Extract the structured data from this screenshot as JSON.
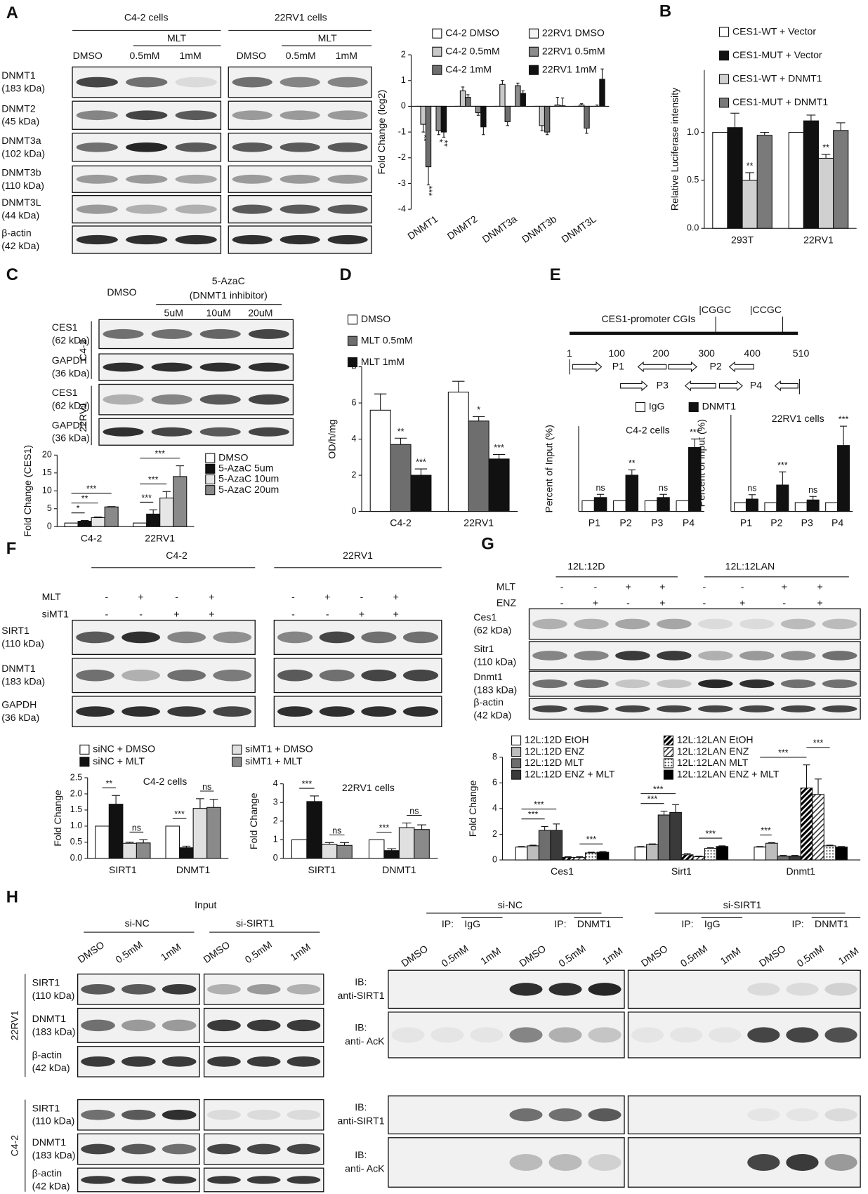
{
  "panel_labels": [
    "A",
    "B",
    "C",
    "D",
    "E",
    "F",
    "G",
    "H"
  ],
  "blot_A": {
    "groups": [
      "C4-2 cells",
      "22RV1 cells"
    ],
    "treatment": "MLT",
    "lanes": [
      "DMSO",
      "0.5mM",
      "1mM"
    ],
    "rows": [
      [
        "DNMT1",
        "(183 kDa)"
      ],
      [
        "DNMT2",
        "(45 kDa)"
      ],
      [
        "DNMT3a",
        "(102 kDa)"
      ],
      [
        "DNMT3b",
        "(110 kDa)"
      ],
      [
        "DNMT3L",
        "(44 kDa)"
      ],
      [
        "β-actin",
        "(42 kDa)"
      ]
    ]
  },
  "blot_C": {
    "lanes": [
      "DMSO",
      "5uM",
      "10uM",
      "20uM"
    ],
    "treatment": [
      "5-AzaC",
      "(DNMT1  inhibitor)"
    ],
    "cells": [
      "C4-2",
      "22RV1"
    ],
    "rows": [
      [
        "CES1",
        "(62 kDa)"
      ],
      [
        "GAPDH",
        "(36 kDa)"
      ]
    ]
  },
  "diagram_E": {
    "title": "CES1-promoter CGIs",
    "sites": [
      "|CGGC",
      "|CCGC"
    ],
    "positions": [
      "1",
      "100",
      "200",
      "300",
      "400",
      "510"
    ],
    "primers": [
      "P1",
      "P2",
      "P3",
      "P4"
    ]
  },
  "blot_F": {
    "groups": [
      "C4-2",
      "22RV1"
    ],
    "conditions": [
      "MLT",
      "siMT1"
    ],
    "signs": [
      [
        "-",
        "+",
        "-",
        "+"
      ],
      [
        "-",
        "-",
        "+",
        "+"
      ]
    ],
    "rows": [
      [
        "SIRT1",
        "(110 kDa)"
      ],
      [
        "DNMT1",
        "(183 kDa)"
      ],
      [
        "GAPDH",
        "(36 kDa)"
      ]
    ]
  },
  "blot_G": {
    "groups": [
      "12L:12D",
      "12L:12LAN"
    ],
    "conditions": [
      "MLT",
      "ENZ"
    ],
    "signs": [
      [
        "-",
        "-",
        "+",
        "+",
        "-",
        "-",
        "+",
        "+"
      ],
      [
        "-",
        "+",
        "-",
        "+",
        "-",
        "+",
        "-",
        "+"
      ]
    ],
    "rows": [
      [
        "Ces1",
        "(62 kDa)"
      ],
      [
        "Sitr1",
        "(110 kDa)"
      ],
      [
        "Dnmt1",
        "(183 kDa)"
      ],
      [
        "β-actin",
        "(42 kDa)"
      ]
    ]
  },
  "blot_H": {
    "input": "Input",
    "groups": [
      "si-NC",
      "si-SIRT1"
    ],
    "lanes": [
      "DMSO",
      "0.5mM",
      "1mM"
    ],
    "cells": [
      "22RV1",
      "C4-2"
    ],
    "rows": [
      [
        "SIRT1",
        "(110 kDa)"
      ],
      [
        "DNMT1",
        "(183 kDa)"
      ],
      [
        "β-actin",
        "(42 kDa)"
      ]
    ],
    "ip": [
      "IP:",
      "IgG",
      "DNMT1"
    ],
    "ib": [
      [
        "IB:",
        "anti-SIRT1"
      ],
      [
        "IB:",
        "anti- AcK"
      ]
    ]
  },
  "chart_data": [
    {
      "type": "bar",
      "ylabel": "Fold Change (log2)",
      "categories": [
        "DNMT1",
        "DNMT2",
        "DNMT3a",
        "DNMT3b",
        "DNMT3L"
      ],
      "ylim": [
        -4,
        2
      ],
      "yticks": [
        -4,
        -3,
        -2,
        -1,
        0,
        1,
        2
      ],
      "series": [
        {
          "name": "C4-2 DMSO",
          "color": "#ffffff",
          "values": [
            0,
            0,
            0,
            0,
            0
          ]
        },
        {
          "name": "C4-2 0.5mM",
          "color": "#c8c8c8",
          "values": [
            -0.7,
            0.6,
            0.85,
            -0.75,
            0.05
          ],
          "errors": [
            0.3,
            0.15,
            0.15,
            0.2,
            0.05
          ],
          "annotations": [
            "**",
            null,
            null,
            null,
            null
          ]
        },
        {
          "name": "C4-2 1mM",
          "color": "#6e6e6e",
          "values": [
            -2.35,
            0.35,
            -0.6,
            -1.0,
            -0.85
          ],
          "errors": [
            0.7,
            0.1,
            0.15,
            0.1,
            0.2
          ],
          "annotations": [
            "***",
            null,
            null,
            null,
            null
          ]
        },
        {
          "name": "22RV1 DMSO",
          "color": "#f4f4f4",
          "values": [
            0,
            0,
            0,
            0,
            0
          ]
        },
        {
          "name": "22RV1 0.5mM",
          "color": "#8c8c8c",
          "values": [
            -0.95,
            -0.25,
            0.8,
            0.05,
            0
          ],
          "errors": [
            0.15,
            0.1,
            0.1,
            0.3,
            0.05
          ],
          "annotations": [
            "*",
            null,
            null,
            null,
            null
          ]
        },
        {
          "name": "22RV1 1mM",
          "color": "#111111",
          "values": [
            -1.0,
            -0.8,
            0.5,
            0.02,
            1.05
          ],
          "errors": [
            0.2,
            0.3,
            0.1,
            0.3,
            0.4
          ],
          "annotations": [
            "**",
            null,
            null,
            null,
            null
          ]
        }
      ]
    },
    {
      "type": "bar",
      "ylabel": "Relative Luciferase intensity",
      "categories": [
        "293T",
        "22RV1"
      ],
      "ylim": [
        0,
        1.65
      ],
      "yticks": [
        {
          "value": 0,
          "label": "0.0"
        },
        0.5,
        {
          "value": 1,
          "label": "1.0"
        }
      ],
      "series": [
        {
          "name": "CES1-WT + Vector",
          "color": "#ffffff",
          "values": [
            1,
            1
          ]
        },
        {
          "name": "CES1-MUT + Vector",
          "color": "#111111",
          "values": [
            1.05,
            1.12
          ],
          "errors": [
            0.15,
            0.06
          ]
        },
        {
          "name": "CES1-WT + DNMT1",
          "color": "#d0d0d0",
          "values": [
            0.5,
            0.73
          ],
          "errors": [
            0.08,
            0.04
          ],
          "annotations": [
            "**",
            "**"
          ]
        },
        {
          "name": "CES1-MUT + DNMT1",
          "color": "#7a7a7a",
          "values": [
            0.97,
            1.02
          ],
          "errors": [
            0.03,
            0.08
          ]
        }
      ]
    },
    {
      "type": "bar",
      "ylabel": "Fold Change (CES1)",
      "categories": [
        "C4-2",
        "22RV1"
      ],
      "ylim": [
        0,
        20
      ],
      "yticks": [
        0,
        5,
        10,
        15,
        20
      ],
      "series": [
        {
          "name": "DMSO",
          "color": "#ffffff",
          "values": [
            1,
            1
          ]
        },
        {
          "name": "5-AzaC 5um",
          "color": "#111111",
          "values": [
            1.5,
            3.5
          ],
          "errors": [
            0.2,
            1.2
          ]
        },
        {
          "name": "5-AzaC 10um",
          "color": "#e6e6e6",
          "values": [
            2.5,
            8
          ],
          "errors": [
            0.2,
            1.8
          ]
        },
        {
          "name": "5-AzaC 20um",
          "color": "#8a8a8a",
          "values": [
            5.5,
            14
          ],
          "errors": [
            0.1,
            3
          ]
        }
      ],
      "brackets": [
        {
          "text": "*",
          "category": 0,
          "from": 0,
          "to": 1
        },
        {
          "text": "**",
          "category": 0,
          "from": 0,
          "to": 2
        },
        {
          "text": "***",
          "category": 0,
          "from": 0,
          "to": 3
        },
        {
          "text": "***",
          "category": 1,
          "from": 0,
          "to": 1
        },
        {
          "text": "***",
          "category": 1,
          "from": 0,
          "to": 2
        },
        {
          "text": "***",
          "category": 1,
          "from": 0,
          "to": 3
        }
      ]
    },
    {
      "type": "bar",
      "ylabel": "OD/h/mg",
      "categories": [
        "C4-2",
        "22RV1"
      ],
      "ylim": [
        0,
        8
      ],
      "yticks": [
        0,
        2,
        4,
        6,
        8
      ],
      "series": [
        {
          "name": "DMSO",
          "color": "#ffffff",
          "values": [
            5.6,
            6.6
          ],
          "errors": [
            0.9,
            0.6
          ]
        },
        {
          "name": "MLT 0.5mM",
          "color": "#6e6e6e",
          "values": [
            3.7,
            5.0
          ],
          "errors": [
            0.35,
            0.25
          ],
          "annotations": [
            "**",
            "*"
          ]
        },
        {
          "name": "MLT 1mM",
          "color": "#111111",
          "values": [
            2.0,
            2.9
          ],
          "errors": [
            0.35,
            0.25
          ],
          "annotations": [
            "***",
            "***"
          ]
        }
      ]
    },
    {
      "type": "bar",
      "title": "C4-2 cells",
      "ylabel": "Percent of Input (%)",
      "categories": [
        "P1",
        "P2",
        "P3",
        "P4"
      ],
      "ylim": [
        0,
        8
      ],
      "series": [
        {
          "name": "IgG",
          "color": "#ffffff",
          "values": [
            1,
            1,
            1,
            1
          ]
        },
        {
          "name": "DNMT1",
          "color": "#111111",
          "values": [
            1.3,
            3.4,
            1.3,
            6.0
          ],
          "errors": [
            0.3,
            0.5,
            0.3,
            0.8
          ],
          "annotations": [
            "ns",
            "**",
            "ns",
            "***"
          ]
        }
      ]
    },
    {
      "type": "bar",
      "title": "22RV1 cells",
      "ylabel": "Percent of Input (%)",
      "categories": [
        "P1",
        "P2",
        "P3",
        "P4"
      ],
      "ylim": [
        0,
        11
      ],
      "series": [
        {
          "color": "#ffffff",
          "values": [
            1,
            1,
            1,
            1
          ]
        },
        {
          "color": "#111111",
          "values": [
            1.4,
            3.0,
            1.3,
            7.5
          ],
          "errors": [
            0.5,
            1.5,
            0.4,
            2.2
          ],
          "annotations": [
            "ns",
            "***",
            "ns",
            "***"
          ]
        }
      ]
    },
    {
      "type": "bar",
      "title": "C4-2 cells",
      "ylabel": "Fold Change",
      "categories": [
        "SIRT1",
        "DNMT1"
      ],
      "ylim": [
        0,
        2.5
      ],
      "yticks": [
        {
          "value": 0,
          "label": "0.0"
        },
        0.5,
        {
          "value": 1,
          "label": "1.0"
        },
        1.5,
        {
          "value": 2,
          "label": "2.0"
        },
        2.5
      ],
      "series": [
        {
          "name": "siNC + DMSO",
          "color": "#ffffff",
          "values": [
            1,
            1
          ]
        },
        {
          "name": "siNC + MLT",
          "color": "#111111",
          "values": [
            1.68,
            0.33
          ],
          "errors": [
            0.27,
            0.05
          ]
        },
        {
          "name": "siMT1 + DMSO",
          "color": "#e0e0e0",
          "values": [
            0.47,
            1.55
          ],
          "errors": [
            0.03,
            0.3
          ]
        },
        {
          "name": "siMT1 + MLT",
          "color": "#8a8a8a",
          "values": [
            0.48,
            1.58
          ],
          "errors": [
            0.1,
            0.25
          ]
        }
      ],
      "brackets": [
        {
          "text": "**",
          "category": 0,
          "from": 0,
          "to": 1
        },
        {
          "text": "ns",
          "category": 0,
          "from": 2,
          "to": 3
        },
        {
          "text": "***",
          "category": 1,
          "from": 0,
          "to": 1
        },
        {
          "text": "ns",
          "category": 1,
          "from": 2,
          "to": 3
        }
      ]
    },
    {
      "type": "bar",
      "title": "22RV1 cells",
      "ylabel": "Fold Change",
      "categories": [
        "SIRT1",
        "DNMT1"
      ],
      "ylim": [
        0,
        4
      ],
      "yticks": [
        0,
        1,
        2,
        3,
        4
      ],
      "series": [
        {
          "color": "#ffffff",
          "values": [
            1,
            1
          ]
        },
        {
          "color": "#111111",
          "values": [
            3.05,
            0.42
          ],
          "errors": [
            0.3,
            0.1
          ]
        },
        {
          "color": "#e0e0e0",
          "values": [
            0.75,
            1.65
          ],
          "errors": [
            0.1,
            0.25
          ]
        },
        {
          "color": "#8a8a8a",
          "values": [
            0.7,
            1.55
          ],
          "errors": [
            0.15,
            0.25
          ]
        }
      ],
      "brackets": [
        {
          "text": "***",
          "category": 0,
          "from": 0,
          "to": 1
        },
        {
          "text": "ns",
          "category": 0,
          "from": 2,
          "to": 3
        },
        {
          "text": "***",
          "category": 1,
          "from": 0,
          "to": 1
        },
        {
          "text": "ns",
          "category": 1,
          "from": 2,
          "to": 3
        }
      ]
    },
    {
      "type": "bar",
      "ylabel": "Fold Change",
      "categories": [
        "Ces1",
        "Sirt1",
        "Dnmt1"
      ],
      "ylim": [
        0,
        8
      ],
      "yticks": [
        0,
        2,
        4,
        6,
        8
      ],
      "series": [
        {
          "name": "12L:12D EtOH",
          "color": "#ffffff",
          "values": [
            1,
            1,
            1
          ],
          "errors": [
            0.05,
            0.05,
            0.05
          ]
        },
        {
          "name": "12L:12D ENZ",
          "color": "#bdbdbd",
          "values": [
            1.1,
            1.2,
            1.3
          ],
          "errors": [
            0.05,
            0.05,
            0.05
          ]
        },
        {
          "name": "12L:12D MLT",
          "color": "#6e6e6e",
          "values": [
            2.3,
            3.5,
            0.3
          ],
          "errors": [
            0.3,
            0.3,
            0.05
          ]
        },
        {
          "name": "12L:12D ENZ + MLT",
          "color": "#3a3a3a",
          "values": [
            2.3,
            3.7,
            0.3
          ],
          "errors": [
            0.5,
            0.6,
            0.05
          ]
        },
        {
          "name": "12L:12LAN EtOH",
          "color": "#000000",
          "pattern": "hatch",
          "values": [
            0.2,
            0.4,
            5.6
          ],
          "errors": [
            0.05,
            0.1,
            1.8
          ]
        },
        {
          "name": "12L:12LAN ENZ",
          "color": "#000000",
          "pattern": "hatch-light",
          "values": [
            0.2,
            0.25,
            5.1
          ],
          "errors": [
            0.05,
            0.05,
            1.2
          ]
        },
        {
          "name": "12L:12LAN MLT",
          "color": "#000000",
          "pattern": "dots",
          "values": [
            0.55,
            0.9,
            1.1
          ],
          "errors": [
            0.05,
            0.05,
            0.05
          ]
        },
        {
          "name": "12L:12LAN ENZ + MLT",
          "color": "#000000",
          "values": [
            0.6,
            1.05,
            1.0
          ],
          "errors": [
            0.05,
            0.05,
            0.05
          ]
        }
      ],
      "brackets": [
        {
          "text": "***",
          "category": 0,
          "from": 0,
          "to": 2
        },
        {
          "text": "***",
          "category": 0,
          "from": 0,
          "to": 3
        },
        {
          "text": "***",
          "category": 0,
          "from": 5,
          "to": 7
        },
        {
          "text": "***",
          "category": 1,
          "from": 0,
          "to": 2
        },
        {
          "text": "***",
          "category": 1,
          "from": 0,
          "to": 3
        },
        {
          "text": "***",
          "category": 1,
          "from": 5,
          "to": 7
        },
        {
          "text": "***",
          "category": 2,
          "from": 0,
          "to": 1
        },
        {
          "text": "***",
          "category": 2,
          "from": 0,
          "to": 4
        },
        {
          "text": "***",
          "category": 2,
          "from": 4,
          "to": 6
        }
      ]
    }
  ]
}
